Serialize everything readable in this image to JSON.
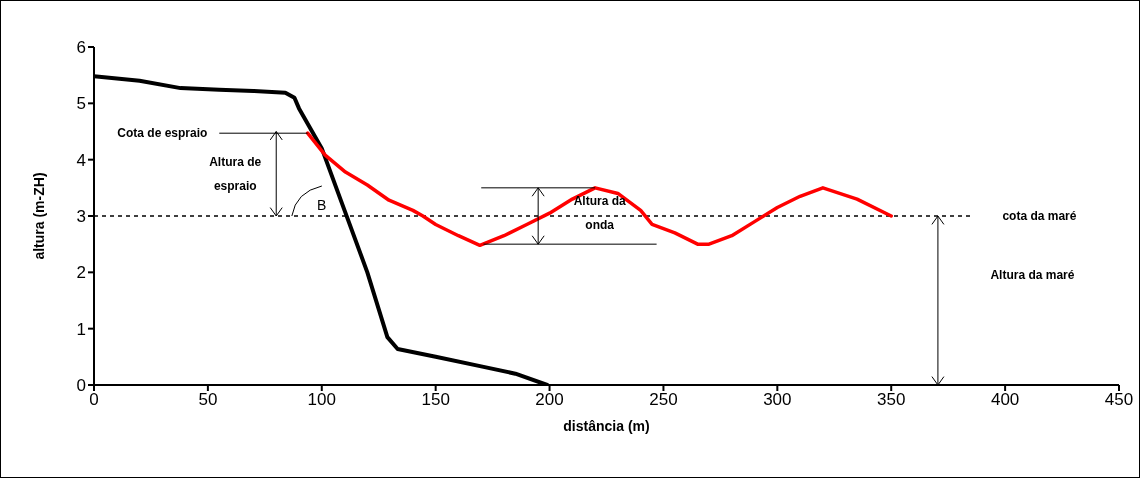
{
  "chart_data": {
    "type": "line",
    "xlabel": "distância (m)",
    "ylabel": "altura (m-ZH)",
    "xlim": [
      0,
      450
    ],
    "xticks": [
      0,
      50,
      100,
      150,
      200,
      250,
      300,
      350,
      400,
      450
    ],
    "ylim": [
      0,
      6
    ],
    "yticks": [
      0,
      1,
      2,
      3,
      4,
      5,
      6
    ],
    "marker": "none",
    "line_style": "solid",
    "series": [
      {
        "color": "#000000",
        "x": [
          0,
          20,
          38,
          55,
          70,
          84,
          88,
          90,
          100,
          110,
          120,
          128.8,
          133.3,
          150,
          170,
          185,
          199
        ],
        "values": [
          5.48,
          5.4,
          5.27,
          5.24,
          5.22,
          5.19,
          5.1,
          4.91,
          4.2,
          3.1,
          2,
          0.85,
          0.64,
          0.5,
          0.33,
          0.2,
          0
        ]
      },
      {
        "color": "#ff0000",
        "x": [
          93.8,
          101.5,
          110.4,
          120,
          129.5,
          140,
          144.4,
          150,
          160,
          169.4,
          180,
          190,
          200,
          210,
          220,
          230,
          240,
          245,
          255,
          265,
          270,
          280,
          290,
          300,
          310,
          320,
          335,
          350
        ],
        "values": [
          4.47,
          4.08,
          3.78,
          3.55,
          3.28,
          3.1,
          3,
          2.85,
          2.65,
          2.48,
          2.65,
          2.85,
          3.05,
          3.3,
          3.5,
          3.4,
          3.1,
          2.85,
          2.7,
          2.5,
          2.5,
          2.65,
          2.9,
          3.15,
          3.35,
          3.5,
          3.3,
          3
        ]
      }
    ],
    "ref_lines": [
      {
        "axis": "y",
        "value": 3,
        "label": "cota da maré",
        "color": "#000000",
        "line_style": "dashed"
      }
    ],
    "annotations": [
      {
        "text": "Cota de espraio",
        "x": 93.8,
        "y": 4.47
      },
      "Altura de\nespraio",
      "B",
      "Altura da\nonda",
      "Altura da maré"
    ]
  }
}
